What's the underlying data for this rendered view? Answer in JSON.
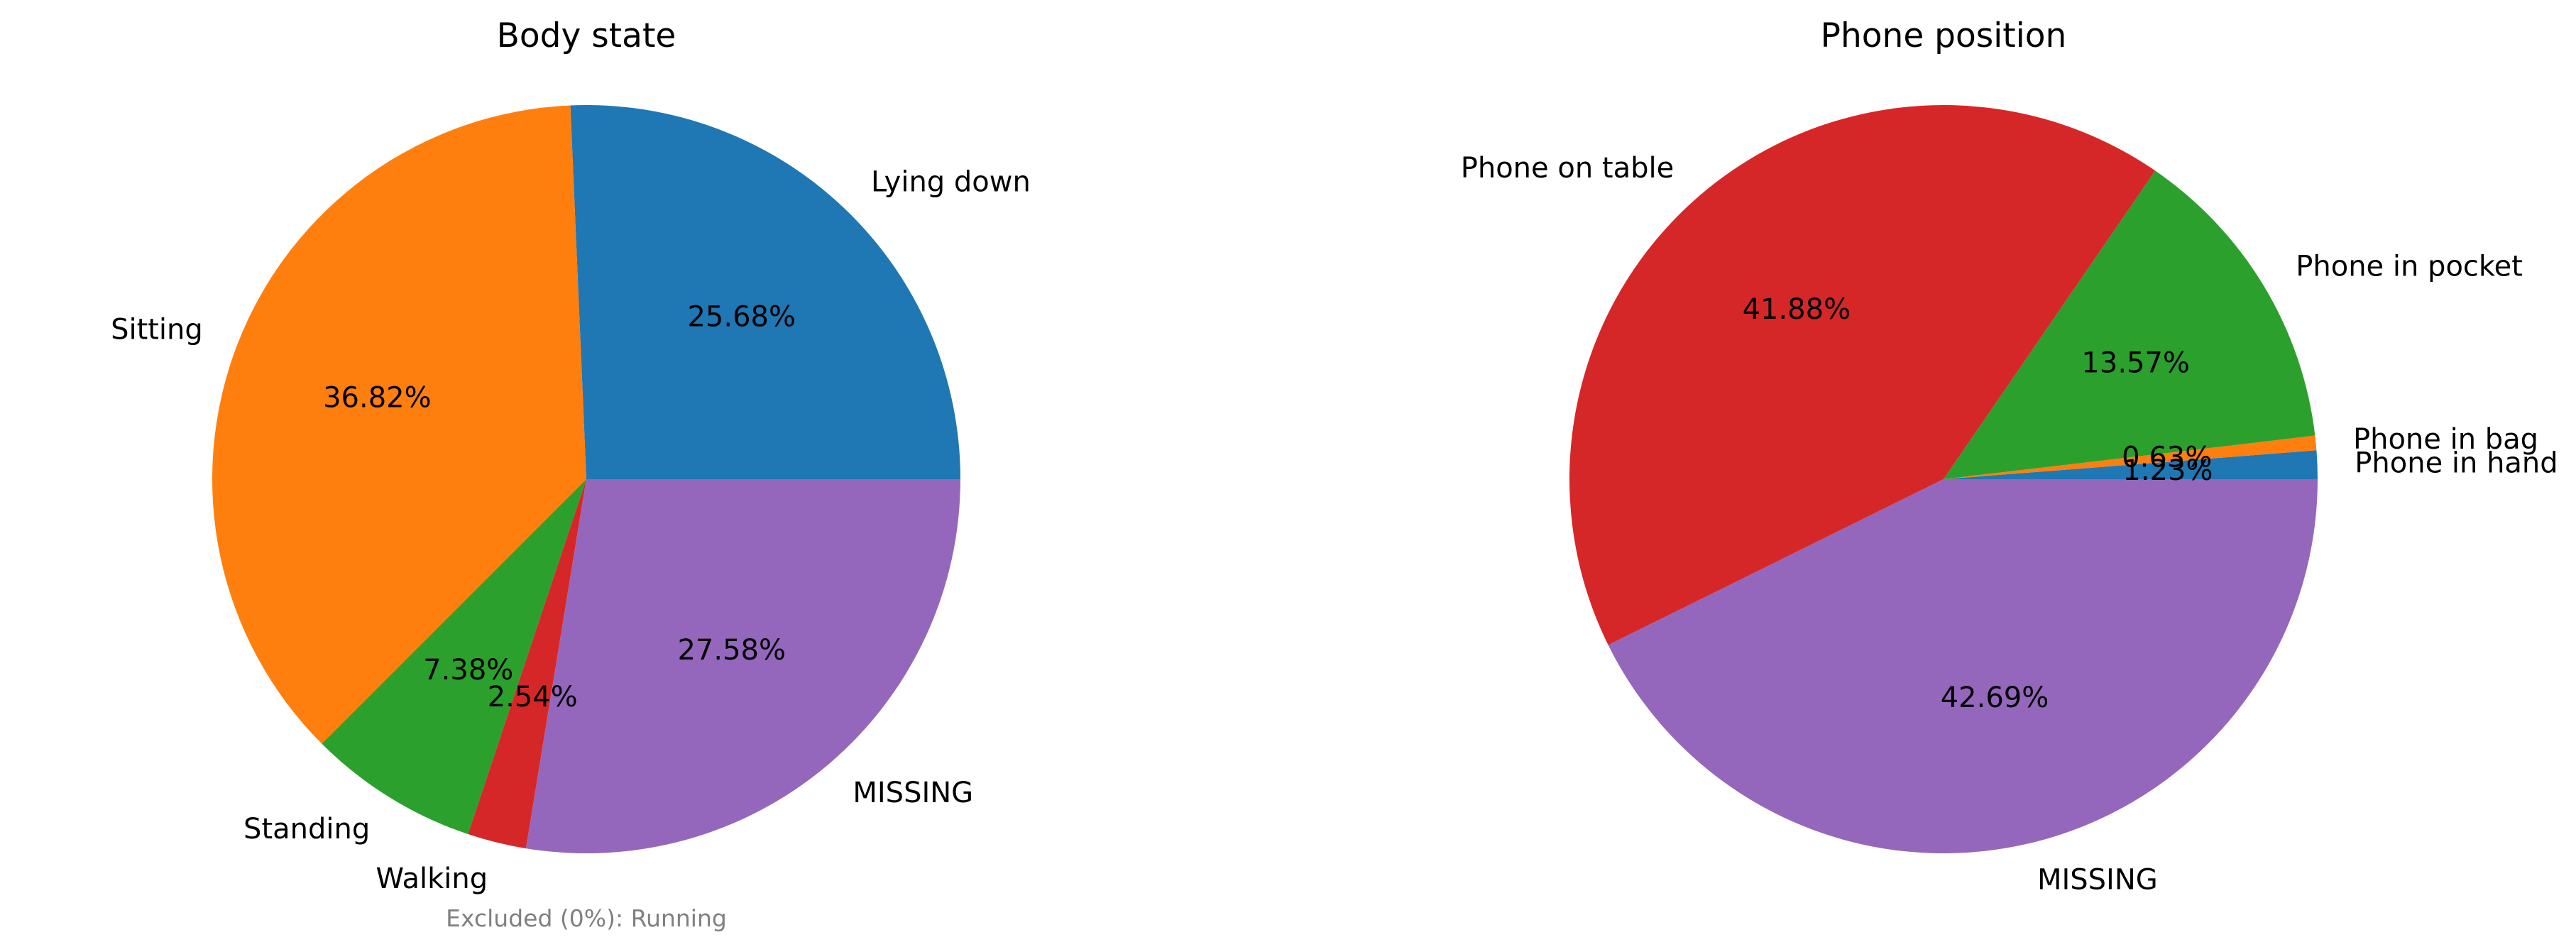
{
  "chart_data": [
    {
      "type": "pie",
      "title": "Body state",
      "note": "Excluded (0%): Running",
      "slices": [
        {
          "label": "Lying down",
          "value": 25.68,
          "pct_text": "25.68%",
          "color": "#1f77b4"
        },
        {
          "label": "Sitting",
          "value": 36.82,
          "pct_text": "36.82%",
          "color": "#ff7f0e"
        },
        {
          "label": "Standing",
          "value": 7.38,
          "pct_text": "7.38%",
          "color": "#2ca02c"
        },
        {
          "label": "Walking",
          "value": 2.54,
          "pct_text": "2.54%",
          "color": "#d62728"
        },
        {
          "label": "MISSING",
          "value": 27.58,
          "pct_text": "27.58%",
          "color": "#9467bd"
        }
      ]
    },
    {
      "type": "pie",
      "title": "Phone position",
      "slices": [
        {
          "label": "Phone in hand",
          "value": 1.23,
          "pct_text": "1.23%",
          "color": "#1f77b4"
        },
        {
          "label": "Phone in bag",
          "value": 0.63,
          "pct_text": "0.63%",
          "color": "#ff7f0e"
        },
        {
          "label": "Phone in pocket",
          "value": 13.57,
          "pct_text": "13.57%",
          "color": "#2ca02c"
        },
        {
          "label": "Phone on table",
          "value": 41.88,
          "pct_text": "41.88%",
          "color": "#d62728"
        },
        {
          "label": "MISSING",
          "value": 42.69,
          "pct_text": "42.69%",
          "color": "#9467bd"
        }
      ]
    }
  ]
}
